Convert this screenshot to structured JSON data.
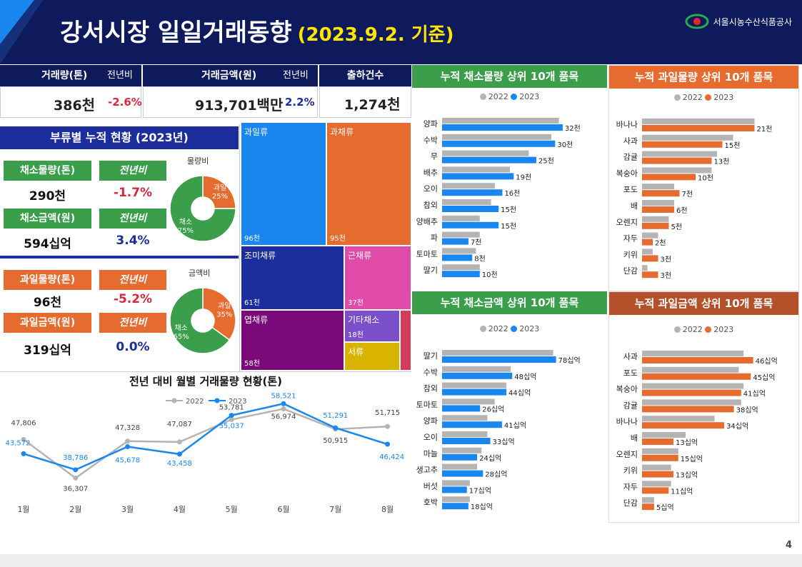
{
  "header": {
    "title": "강서시장 일일거래동향",
    "date_note": "(2023.9.2. 기준)",
    "org": "서울시농수산식품공사",
    "page_number": "4"
  },
  "kpi": {
    "volume_label": "거래량(톤)",
    "volume_value": "386",
    "volume_unit": "천",
    "yoy_label": "전년비",
    "volume_yoy": "-2.6%",
    "amount_label": "거래금액(원)",
    "amount_value": "913,701",
    "amount_unit": "백만",
    "amount_yoy": "2.2%",
    "shipments_label": "출하건수",
    "shipments_value": "1,274",
    "shipments_unit": "천"
  },
  "category": {
    "title": "부류별 누적 현황 (2023년)",
    "veg_volume_label": "채소물량(톤)",
    "veg_volume": "290천",
    "veg_volume_yoy": "-1.7%",
    "veg_amount_label": "채소금액(원)",
    "veg_amount": "594십억",
    "veg_amount_yoy": "3.4%",
    "fruit_volume_label": "과일물량(톤)",
    "fruit_volume": "96천",
    "fruit_volume_yoy": "-5.2%",
    "fruit_amount_label": "과일금액(원)",
    "fruit_amount": "319십억",
    "fruit_amount_yoy": "0.0%",
    "yoy_label": "전년비",
    "volume_ratio_title": "물량비",
    "amount_ratio_title": "금액비"
  },
  "colors": {
    "navy": "#0e1a5c",
    "green": "#3a9e4a",
    "orange": "#e66b2e",
    "blue2023": "#1a86f0",
    "gray2022": "#b4b4b4",
    "brown": "#b5512a"
  },
  "chart_data": [
    {
      "id": "volume_ratio",
      "type": "pie",
      "title": "물량비",
      "labels": [
        "과일",
        "채소"
      ],
      "values": [
        25,
        75
      ],
      "display": [
        "25%",
        "75%"
      ]
    },
    {
      "id": "amount_ratio",
      "type": "pie",
      "title": "금액비",
      "labels": [
        "과일",
        "채소"
      ],
      "values": [
        35,
        65
      ],
      "display": [
        "35%",
        "65%"
      ]
    },
    {
      "id": "treemap",
      "type": "treemap",
      "labels": [
        "과일류",
        "과채류",
        "조미채류",
        "근채류",
        "엽채류",
        "기타채소",
        "서류",
        ""
      ],
      "values": [
        96,
        95,
        61,
        37,
        58,
        18,
        10,
        5
      ],
      "display": [
        "96천",
        "95천",
        "61천",
        "37천",
        "58천",
        "18천",
        "",
        ""
      ],
      "colors": [
        "#1a86f0",
        "#e66b2e",
        "#1c2d9c",
        "#e04aa8",
        "#7a0a7a",
        "#7b4fc9",
        "#d8b400",
        "#d43a5a"
      ]
    },
    {
      "id": "monthly_volume",
      "type": "line",
      "title": "전년 대비 월별 거래물량 현황(톤)",
      "categories": [
        "1월",
        "2월",
        "3월",
        "4월",
        "5월",
        "6월",
        "7월",
        "8월"
      ],
      "series": [
        {
          "name": "2022",
          "values": [
            47806,
            36307,
            47328,
            47087,
            53781,
            56974,
            50915,
            51715
          ],
          "labels": [
            "47,806",
            "36,307",
            "47,328",
            "47,087",
            "53,781",
            "56,974",
            "50,915",
            "51,715"
          ]
        },
        {
          "name": "2023",
          "values": [
            43572,
            38786,
            45678,
            43458,
            55037,
            58521,
            51291,
            46424
          ],
          "labels": [
            "43,572",
            "38,786",
            "45,678",
            "43,458",
            "55,037",
            "58,521",
            "51,291",
            "46,424"
          ]
        }
      ],
      "ylim": [
        30000,
        62000
      ]
    },
    {
      "id": "veg_volume_top10",
      "type": "bar",
      "title": "누적 채소물량 상위 10개 품목",
      "legend": [
        "2022",
        "2023"
      ],
      "categories": [
        "양파",
        "수박",
        "무",
        "배추",
        "오이",
        "참외",
        "양배추",
        "파",
        "토마토",
        "딸기"
      ],
      "series": [
        {
          "name": "2022",
          "values": [
            31,
            29,
            23,
            18,
            14,
            13,
            10,
            10,
            9,
            10
          ]
        },
        {
          "name": "2023",
          "values": [
            32,
            30,
            25,
            19,
            16,
            15,
            15,
            7,
            8,
            10
          ]
        }
      ],
      "value_labels": [
        "32천",
        "30천",
        "25천",
        "19천",
        "16천",
        "15천",
        "15천",
        "7천",
        "8천",
        "10천"
      ],
      "xmax": 36
    },
    {
      "id": "fruit_volume_top10",
      "type": "bar",
      "title": "누적 과일물량 상위 10개 품목",
      "legend": [
        "2022",
        "2023"
      ],
      "categories": [
        "바나나",
        "사과",
        "감귤",
        "복숭아",
        "포도",
        "배",
        "오렌지",
        "자두",
        "키위",
        "단감"
      ],
      "series": [
        {
          "name": "2022",
          "values": [
            21,
            17,
            14,
            13,
            6,
            6,
            5,
            3,
            2,
            1
          ]
        },
        {
          "name": "2023",
          "values": [
            21,
            15,
            13,
            10,
            7,
            6,
            5,
            2,
            3,
            3
          ]
        }
      ],
      "value_labels": [
        "21천",
        "15천",
        "13천",
        "10천",
        "7천",
        "6천",
        "5천",
        "2천",
        "3천",
        "3천"
      ],
      "xmax": 24
    },
    {
      "id": "veg_amount_top10",
      "type": "bar",
      "title": "누적 채소금액 상위 10개 품목",
      "legend": [
        "2022",
        "2023"
      ],
      "categories": [
        "딸기",
        "수박",
        "참외",
        "토마토",
        "양파",
        "오이",
        "마늘",
        "생고추",
        "버섯",
        "호박"
      ],
      "series": [
        {
          "name": "2022",
          "values": [
            76,
            47,
            44,
            36,
            31,
            31,
            27,
            24,
            19,
            19
          ]
        },
        {
          "name": "2023",
          "values": [
            78,
            48,
            44,
            26,
            41,
            33,
            24,
            28,
            17,
            18
          ]
        }
      ],
      "value_labels": [
        "78십억",
        "48십억",
        "44십억",
        "26십억",
        "41십억",
        "33십억",
        "24십억",
        "28십억",
        "17십억",
        "18십억"
      ],
      "xmax": 86
    },
    {
      "id": "fruit_amount_top10",
      "type": "bar",
      "title": "누적 과일금액 상위 10개 품목",
      "legend": [
        "2022",
        "2023"
      ],
      "categories": [
        "사과",
        "포도",
        "복숭아",
        "감귤",
        "바나나",
        "배",
        "오렌지",
        "키위",
        "자두",
        "단감"
      ],
      "series": [
        {
          "name": "2022",
          "values": [
            42,
            40,
            42,
            41,
            30,
            18,
            15,
            12,
            12,
            5
          ]
        },
        {
          "name": "2023",
          "values": [
            46,
            45,
            41,
            38,
            34,
            13,
            15,
            13,
            11,
            5
          ]
        }
      ],
      "value_labels": [
        "46십억",
        "45십억",
        "41십억",
        "38십억",
        "34십억",
        "13십억",
        "15십억",
        "13십억",
        "11십억",
        "5십억"
      ],
      "xmax": 52
    }
  ]
}
